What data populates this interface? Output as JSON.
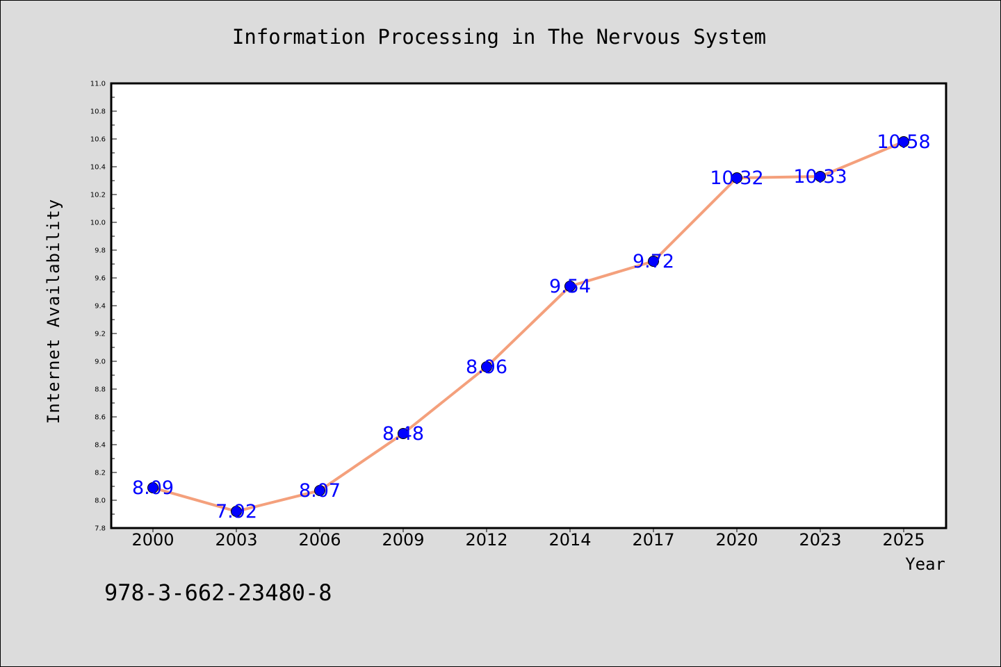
{
  "chart_data": {
    "type": "line",
    "title": "Information Processing in The Nervous System",
    "xlabel": "Year",
    "ylabel": "Internet Availability",
    "categories": [
      "2000",
      "2003",
      "2006",
      "2009",
      "2012",
      "2014",
      "2017",
      "2020",
      "2023",
      "2025"
    ],
    "series": [
      {
        "values": [
          8.09,
          7.92,
          8.07,
          8.48,
          8.96,
          9.54,
          9.72,
          10.32,
          10.33,
          10.58
        ],
        "data_labels": [
          "8.09",
          "7.92",
          "8.07",
          "8.48",
          "8.96",
          "9.54",
          "9.72",
          "10.32",
          "10.33",
          "10.58"
        ],
        "line_color": "#f4a07c",
        "marker_color": "#0000ff"
      }
    ],
    "ylim": [
      7.8,
      11.0
    ],
    "yticks": [
      "7.8",
      "8.0",
      "8.2",
      "8.4",
      "8.6",
      "8.8",
      "9.0",
      "9.2",
      "9.4",
      "9.6",
      "9.8",
      "10.0",
      "10.2",
      "10.4",
      "10.6",
      "10.8",
      "11.0"
    ],
    "grid": false,
    "legend": "none"
  },
  "footer": {
    "isbn": "978-3-662-23480-8"
  },
  "colors": {
    "background": "#dcdcdc",
    "plot_background": "#ffffff",
    "line": "#f4a07c",
    "marker": "#0000ff",
    "data_label": "#0000ff"
  }
}
